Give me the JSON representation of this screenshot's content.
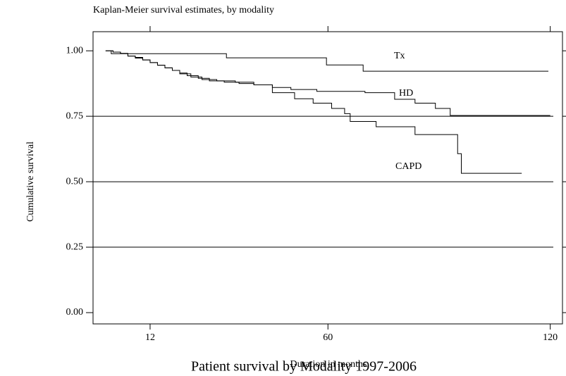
{
  "chart_data": {
    "type": "line",
    "step": true,
    "title": "Kaplan-Meier survival estimates, by modality",
    "xlabel": "Duration in months",
    "ylabel": "Cumulative survival",
    "caption": "Patient survival by Modality 1997-2006",
    "xlim": [
      -3.4,
      123.3
    ],
    "ylim": [
      -0.043,
      1.073
    ],
    "xticks": [
      12,
      60,
      120
    ],
    "yticks": [
      {
        "value": 0,
        "label": "0.00"
      },
      {
        "value": 0.25,
        "label": "0.25"
      },
      {
        "value": 0.5,
        "label": "0.50"
      },
      {
        "value": 0.75,
        "label": "0.75"
      },
      {
        "value": 1,
        "label": "1.00"
      }
    ],
    "grid": true,
    "series": [
      {
        "name": "Tx",
        "color": "#000000",
        "x": [
          0,
          1.5,
          32.6,
          59.6,
          69.5,
          119.5
        ],
        "values": [
          1.0,
          0.989,
          0.973,
          0.946,
          0.922,
          0.922
        ]
      },
      {
        "name": "HD",
        "color": "#000000",
        "x": [
          0,
          2,
          4,
          6,
          8,
          10,
          12,
          14,
          16,
          18,
          20,
          22,
          25,
          28,
          32,
          36,
          40,
          45,
          50,
          57,
          70,
          78,
          83.5,
          89,
          93,
          120
        ],
        "values": [
          1,
          0.995,
          0.99,
          0.98,
          0.975,
          0.965,
          0.955,
          0.945,
          0.935,
          0.925,
          0.915,
          0.905,
          0.895,
          0.885,
          0.88,
          0.875,
          0.87,
          0.86,
          0.852,
          0.845,
          0.84,
          0.815,
          0.8,
          0.78,
          0.753,
          0.753
        ]
      },
      {
        "name": "CAPD",
        "color": "#000000",
        "x": [
          0,
          2,
          4,
          6,
          8,
          10,
          12,
          14,
          16,
          18,
          20,
          23,
          26,
          30,
          35,
          40,
          45,
          51,
          56,
          61,
          64.5,
          66,
          73,
          83.5,
          95,
          96,
          112.3
        ],
        "values": [
          1,
          0.995,
          0.99,
          0.98,
          0.972,
          0.965,
          0.955,
          0.945,
          0.935,
          0.925,
          0.912,
          0.9,
          0.89,
          0.885,
          0.88,
          0.87,
          0.84,
          0.817,
          0.8,
          0.78,
          0.76,
          0.73,
          0.71,
          0.68,
          0.607,
          0.532,
          0.532
        ]
      }
    ]
  }
}
